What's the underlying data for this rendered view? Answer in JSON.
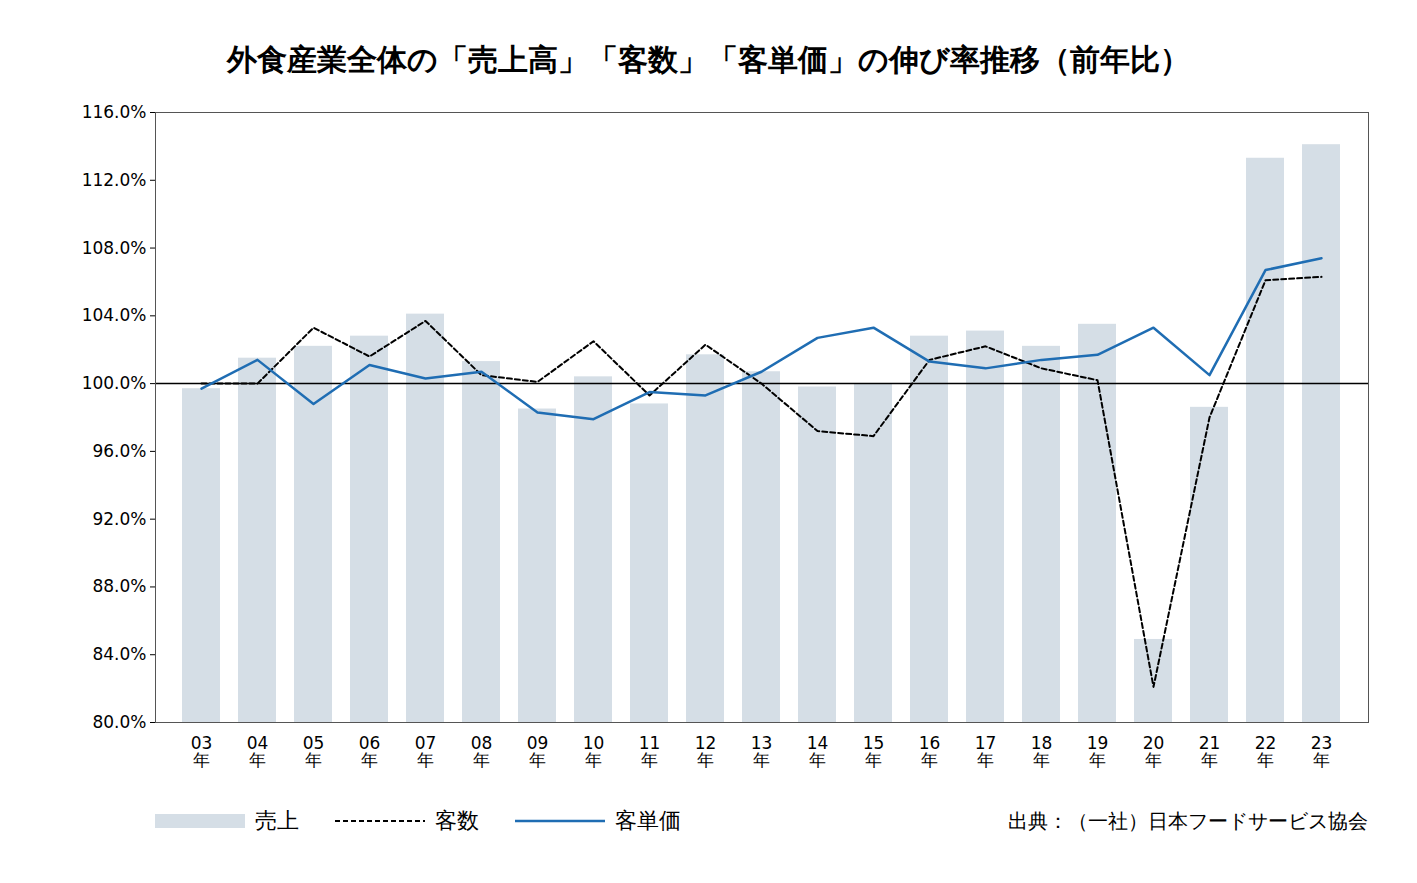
{
  "chart_data": {
    "type": "bar",
    "title": "外食産業全体の「売上高」「客数」「客単価」の伸び率推移（前年比）",
    "caption": "出典：（一社）日本フードサービス協会",
    "categories": [
      "03年",
      "04年",
      "05年",
      "06年",
      "07年",
      "08年",
      "09年",
      "10年",
      "11年",
      "12年",
      "13年",
      "14年",
      "15年",
      "16年",
      "17年",
      "18年",
      "19年",
      "20年",
      "21年",
      "22年",
      "23年"
    ],
    "series": [
      {
        "name": "売上",
        "type": "bar",
        "color": "#d5dee6",
        "values": [
          99.7,
          101.5,
          102.2,
          102.8,
          104.1,
          101.3,
          98.5,
          100.4,
          98.8,
          101.7,
          100.7,
          99.8,
          100.0,
          102.8,
          103.1,
          102.2,
          103.5,
          84.9,
          98.6,
          113.3,
          114.1
        ]
      },
      {
        "name": "客数",
        "type": "line",
        "line_style": "dashed",
        "color": "#000000",
        "values": [
          100.0,
          100.0,
          103.3,
          101.6,
          103.7,
          100.5,
          100.1,
          102.5,
          99.3,
          102.3,
          100.0,
          97.2,
          96.9,
          101.4,
          102.2,
          100.9,
          100.2,
          82.1,
          98.0,
          106.1,
          106.3
        ]
      },
      {
        "name": "客単価",
        "type": "line",
        "line_style": "solid",
        "color": "#1f6db3",
        "values": [
          99.7,
          101.4,
          98.8,
          101.1,
          100.3,
          100.7,
          98.3,
          97.9,
          99.5,
          99.3,
          100.7,
          102.7,
          103.3,
          101.3,
          100.9,
          101.4,
          101.7,
          103.3,
          100.5,
          106.7,
          107.4
        ]
      }
    ],
    "reference_line": 100,
    "ylim": [
      80,
      116
    ],
    "yticks": [
      {
        "value": 80,
        "label": "80.0%"
      },
      {
        "value": 84,
        "label": "84.0%"
      },
      {
        "value": 88,
        "label": "88.0%"
      },
      {
        "value": 92,
        "label": "92.0%"
      },
      {
        "value": 96,
        "label": "96.0%"
      },
      {
        "value": 100,
        "label": "100.0%"
      },
      {
        "value": 104,
        "label": "104.0%"
      },
      {
        "value": 108,
        "label": "108.0%"
      },
      {
        "value": 112,
        "label": "112.0%"
      },
      {
        "value": 116,
        "label": "116.0%"
      }
    ],
    "grid": false
  }
}
